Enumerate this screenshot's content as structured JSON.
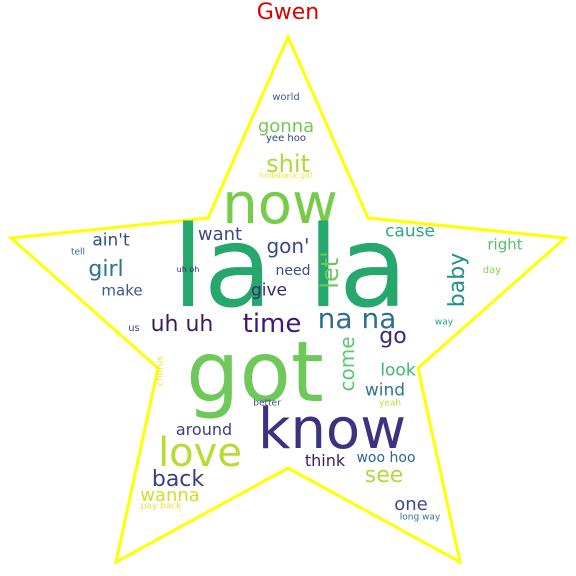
{
  "title": "Gwen",
  "colors": {
    "title": "#dd0000",
    "outline": "#ffff00",
    "background": "#ffffff"
  },
  "words": [
    {
      "text": "world",
      "weight": 10,
      "color": "#3e5c8c"
    },
    {
      "text": "yee hoo",
      "weight": 10,
      "color": "#31407e"
    },
    {
      "text": "gonna",
      "weight": 18,
      "color": "#74c756"
    },
    {
      "text": "shit",
      "weight": 24,
      "color": "#b1d93a"
    },
    {
      "text": "hollaback girl",
      "weight": 8,
      "color": "#f0e640"
    },
    {
      "text": "now",
      "weight": 56,
      "color": "#76cc48"
    },
    {
      "text": "la la",
      "weight": 112,
      "color": "#26a86d"
    },
    {
      "text": "want",
      "weight": 18,
      "color": "#3b4a87"
    },
    {
      "text": "gon'",
      "weight": 20,
      "color": "#3b4a87"
    },
    {
      "text": "cause",
      "weight": 17,
      "color": "#2ea982"
    },
    {
      "text": "ain't",
      "weight": 17,
      "color": "#30508a"
    },
    {
      "text": "right",
      "weight": 15,
      "color": "#51c26b"
    },
    {
      "text": "tell",
      "weight": 9,
      "color": "#3a6490"
    },
    {
      "text": "girl",
      "weight": 22,
      "color": "#2b738e"
    },
    {
      "text": "uh oh",
      "weight": 8,
      "color": "#38286e"
    },
    {
      "text": "need",
      "weight": 14,
      "color": "#3a4e87"
    },
    {
      "text": "let'",
      "weight": 24,
      "color": "#6dc75f"
    },
    {
      "text": "baby",
      "weight": 22,
      "color": "#22908d"
    },
    {
      "text": "day",
      "weight": 10,
      "color": "#7fd34c"
    },
    {
      "text": "make",
      "weight": 15,
      "color": "#3a5a8c"
    },
    {
      "text": "give",
      "weight": 17,
      "color": "#3b2a72"
    },
    {
      "text": "na na",
      "weight": 28,
      "color": "#2e6d8e"
    },
    {
      "text": "uh uh",
      "weight": 22,
      "color": "#3a1a60"
    },
    {
      "text": "time",
      "weight": 26,
      "color": "#41187a"
    },
    {
      "text": "go",
      "weight": 22,
      "color": "#3b2a72"
    },
    {
      "text": "way",
      "weight": 9,
      "color": "#21a08a"
    },
    {
      "text": "us",
      "weight": 10,
      "color": "#3b4a87"
    },
    {
      "text": "chorus",
      "weight": 9,
      "color": "#ece035"
    },
    {
      "text": "got",
      "weight": 84,
      "color": "#6fc85a"
    },
    {
      "text": "come",
      "weight": 20,
      "color": "#5ec575"
    },
    {
      "text": "look",
      "weight": 17,
      "color": "#3fb66e"
    },
    {
      "text": "wind",
      "weight": 17,
      "color": "#2e748e"
    },
    {
      "text": "yeah",
      "weight": 9,
      "color": "#b8de34"
    },
    {
      "text": "better",
      "weight": 9,
      "color": "#3b4a87"
    },
    {
      "text": "around",
      "weight": 16,
      "color": "#3b3f82"
    },
    {
      "text": "know",
      "weight": 56,
      "color": "#3b3282"
    },
    {
      "text": "love",
      "weight": 40,
      "color": "#b7dc34"
    },
    {
      "text": "think",
      "weight": 16,
      "color": "#3c2066"
    },
    {
      "text": "woo hoo",
      "weight": 14,
      "color": "#2d668e"
    },
    {
      "text": "back",
      "weight": 22,
      "color": "#3b3f82"
    },
    {
      "text": "see",
      "weight": 22,
      "color": "#b1d93a"
    },
    {
      "text": "wanna",
      "weight": 18,
      "color": "#cde02e"
    },
    {
      "text": "one",
      "weight": 18,
      "color": "#3b4a87"
    },
    {
      "text": "pay back",
      "weight": 9,
      "color": "#e6e03a"
    },
    {
      "text": "long way",
      "weight": 9,
      "color": "#2a748e"
    }
  ]
}
